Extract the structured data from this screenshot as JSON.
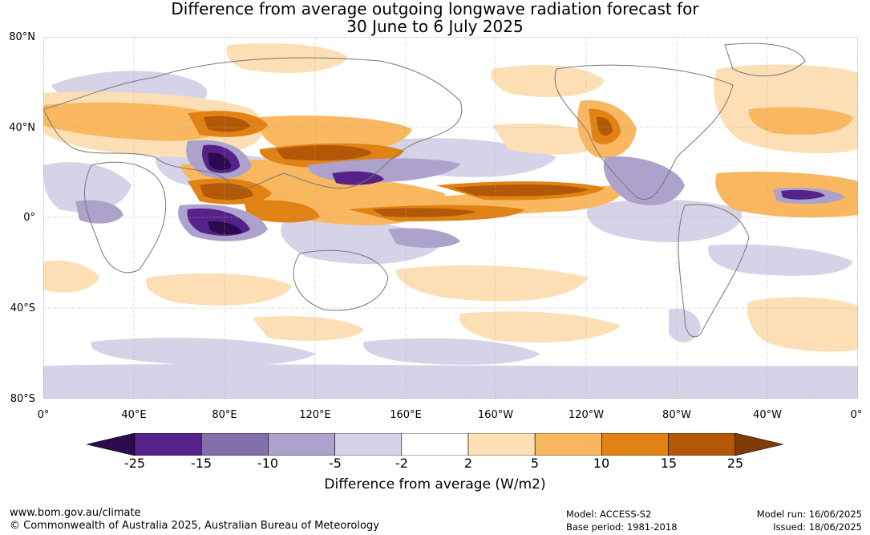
{
  "title_line1": "Difference from average outgoing longwave radiation forecast for",
  "title_line2": "30 June to 6 July 2025",
  "lat_labels": [
    "80°N",
    "40°N",
    "0°",
    "40°S",
    "80°S"
  ],
  "lon_labels": [
    "0°",
    "40°E",
    "80°E",
    "120°E",
    "160°E",
    "160°W",
    "120°W",
    "80°W",
    "40°W",
    "0°"
  ],
  "colorbar": {
    "ticks": [
      "-25",
      "-15",
      "-10",
      "-5",
      "-2",
      "2",
      "5",
      "10",
      "15",
      "25"
    ],
    "colors": [
      "#2d0a4e",
      "#55228a",
      "#8370aa",
      "#aca2cc",
      "#d6d3e8",
      "#ffffff",
      "#fddfb5",
      "#f9b760",
      "#e08214",
      "#b35806",
      "#7f3b08"
    ],
    "title": "Difference from average (W/m2)"
  },
  "footer": {
    "url": "www.bom.gov.au/climate",
    "copyright": "© Commonwealth of Australia 2025, Australian Bureau of Meteorology",
    "model": "Model: ACCESS-S2",
    "base_period": "Base period: 1981-2018",
    "model_run": "Model run: 16/06/2025",
    "issued": "Issued: 18/06/2025"
  }
}
